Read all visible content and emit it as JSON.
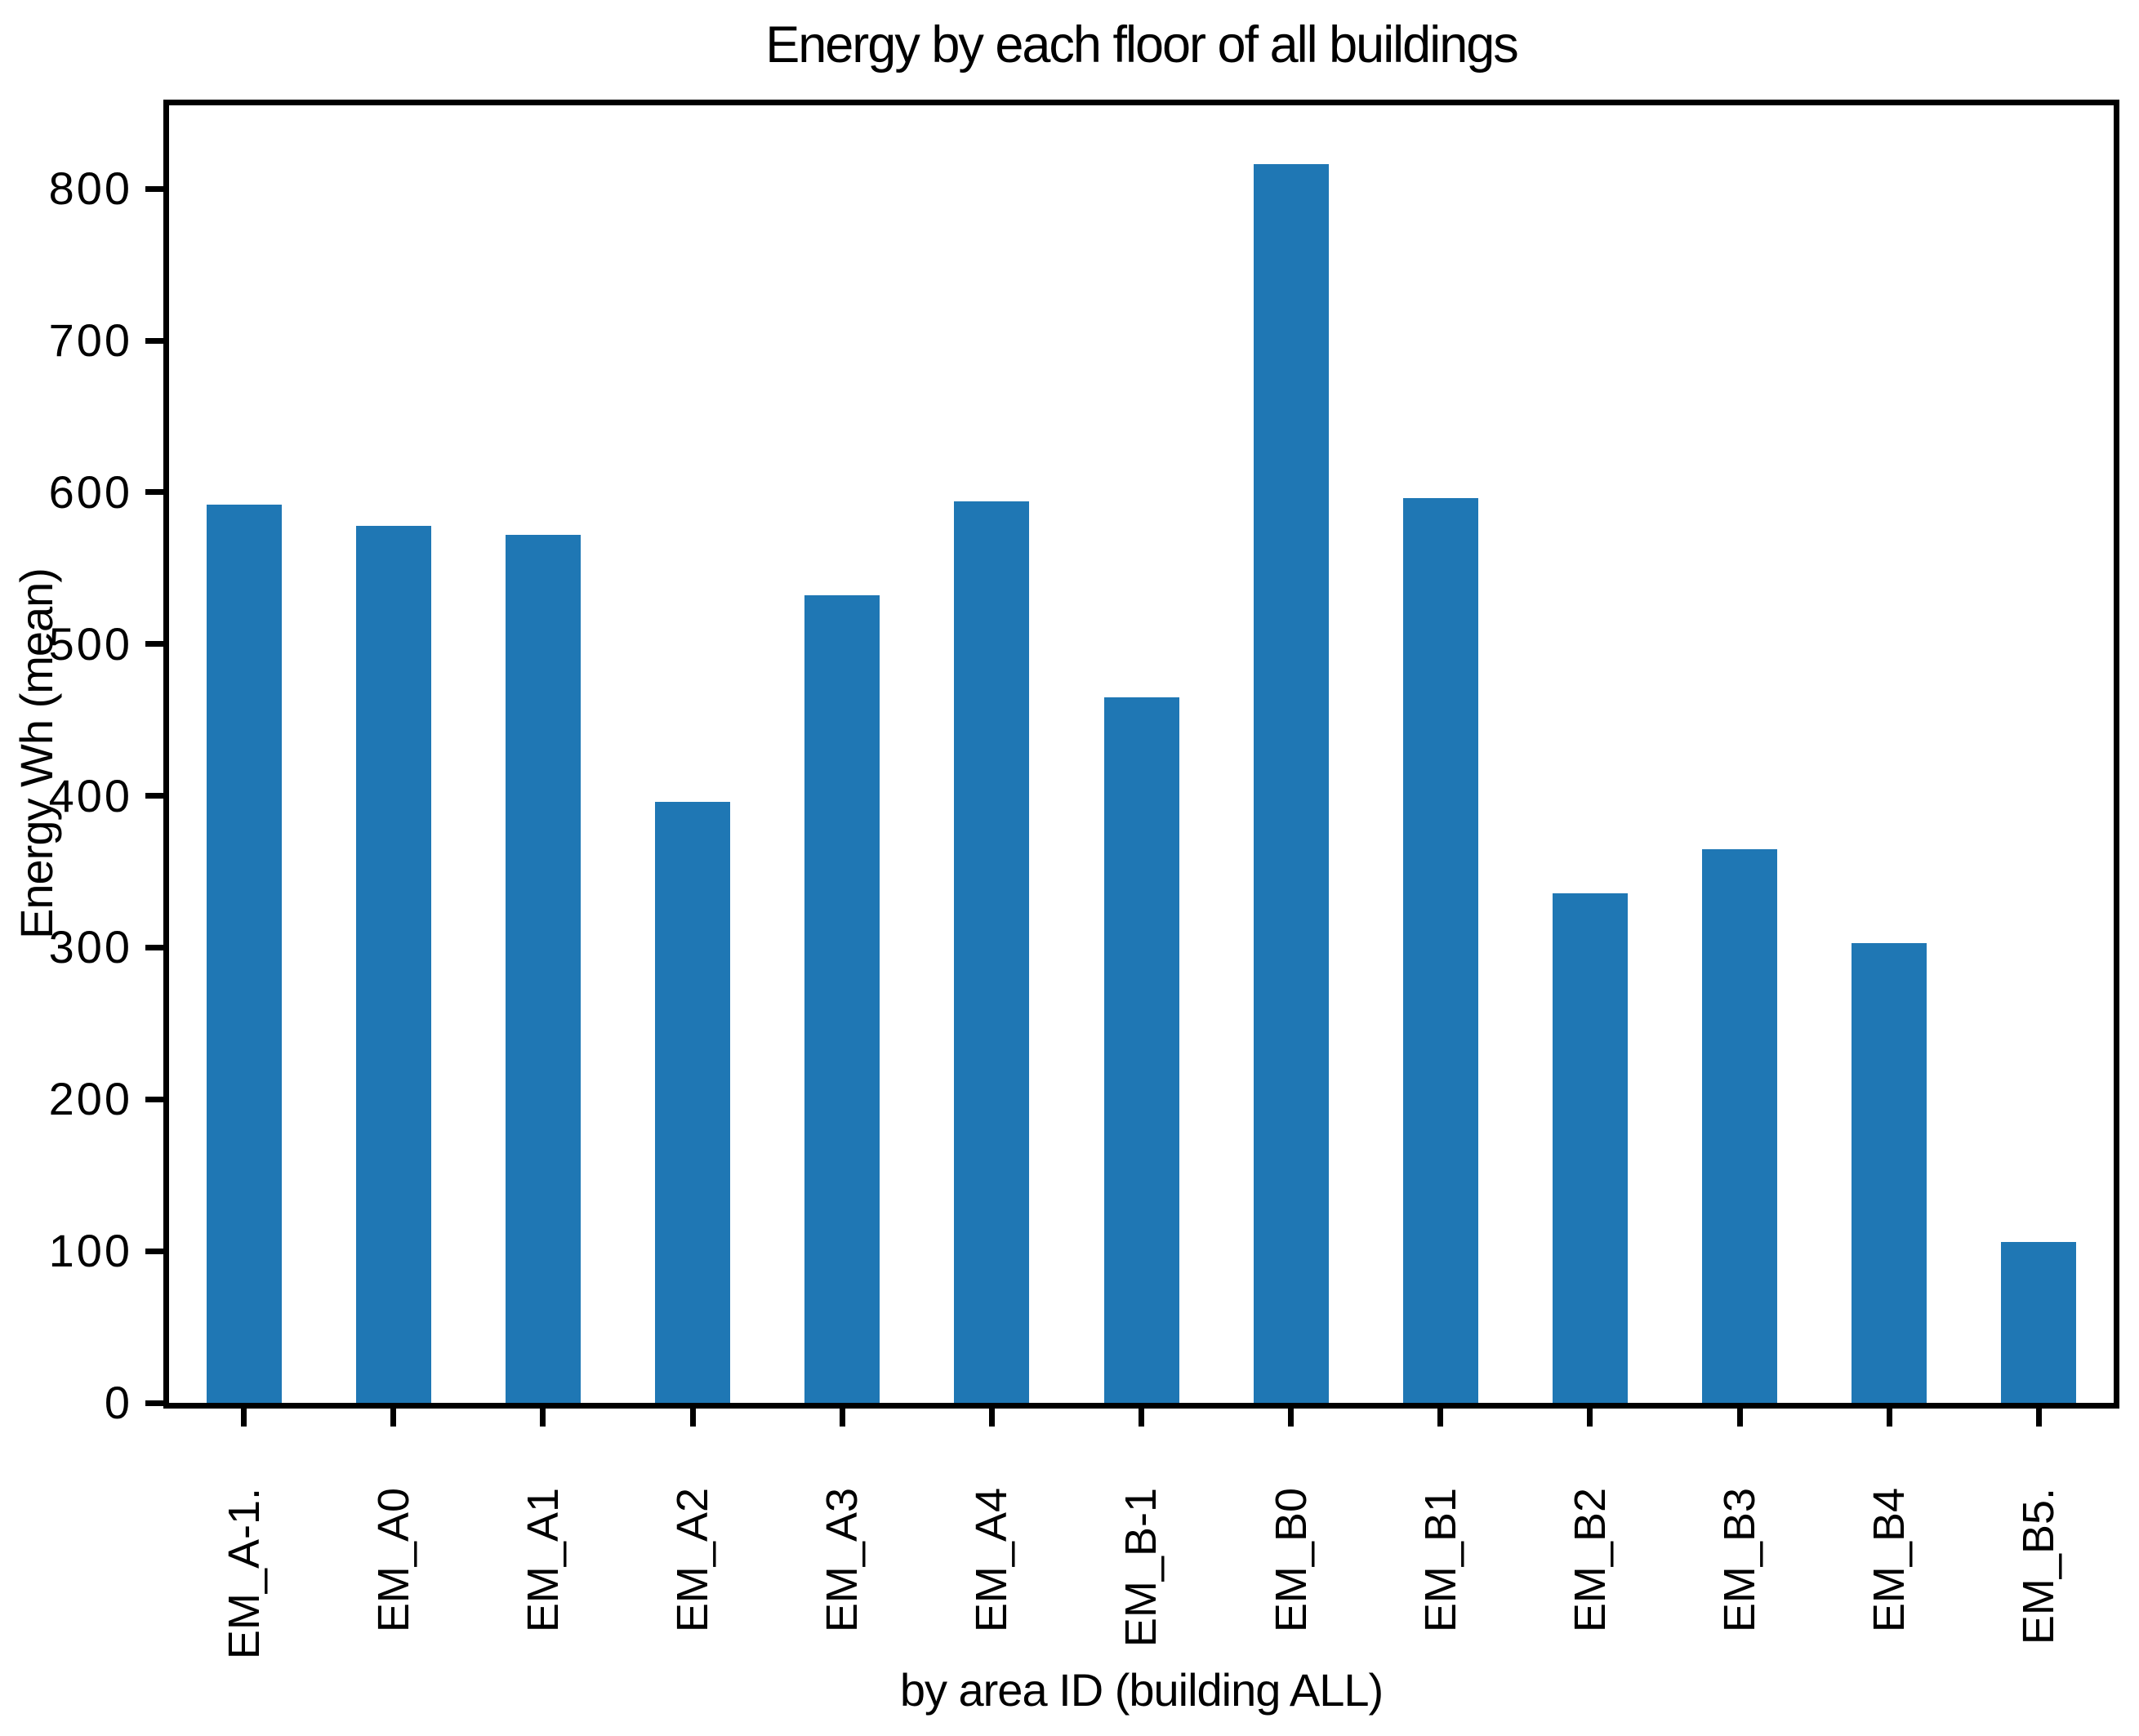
{
  "chart_data": {
    "type": "bar",
    "title": "Energy by each floor of all buildings",
    "xlabel": "by area ID (building ALL)",
    "ylabel": "Energy Wh (mean)",
    "categories": [
      "EM_A-1.",
      "EM_A0",
      "EM_A1",
      "EM_A2",
      "EM_A3",
      "EM_A4",
      "EM_B-1",
      "EM_B0",
      "EM_B1",
      "EM_B2",
      "EM_B3",
      "EM_B4",
      "EM_B5."
    ],
    "values": [
      592,
      578,
      572,
      396,
      532,
      594,
      465,
      816,
      596,
      336,
      365,
      303,
      106
    ],
    "yticks": [
      0,
      100,
      200,
      300,
      400,
      500,
      600,
      700,
      800
    ],
    "ylim": [
      0,
      855
    ],
    "bar_color": "#1f77b4",
    "spine_color": "#000000",
    "text_color": "#000000",
    "grid": false,
    "legend": null,
    "x_tick_label_rotation_deg": 90
  }
}
